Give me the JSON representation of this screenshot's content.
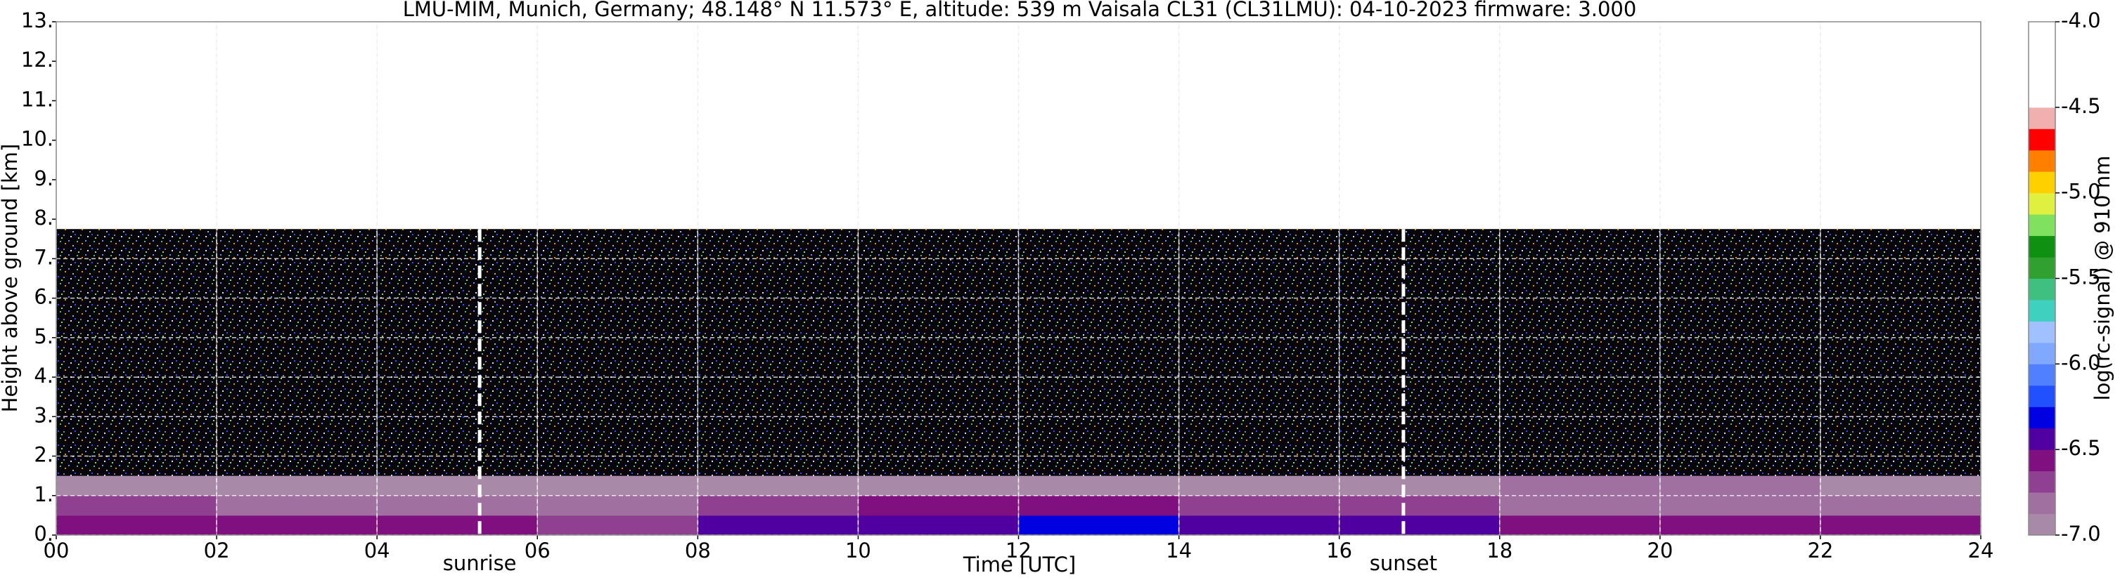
{
  "chart_data": {
    "type": "heatmap",
    "title": "LMU-MIM, Munich, Germany; 48.148° N 11.573° E, altitude: 539 m    Vaisala CL31 (CL31LMU): 04-10-2023    firmware: 3.000",
    "x_label": "Time [UTC]",
    "y_label": "Height above ground [km]",
    "colorbar_label": "log(rc-signal) @ 910 nm",
    "xlim": [
      0,
      24
    ],
    "ylim": [
      0,
      13
    ],
    "xticks": [
      {
        "value": 0,
        "label": "00"
      },
      {
        "value": 2,
        "label": "02"
      },
      {
        "value": 4,
        "label": "04"
      },
      {
        "value": 6,
        "label": "06"
      },
      {
        "value": 8,
        "label": "08"
      },
      {
        "value": 10,
        "label": "10"
      },
      {
        "value": 12,
        "label": "12"
      },
      {
        "value": 14,
        "label": "14"
      },
      {
        "value": 16,
        "label": "16"
      },
      {
        "value": 18,
        "label": "18"
      },
      {
        "value": 20,
        "label": "20"
      },
      {
        "value": 22,
        "label": "22"
      },
      {
        "value": 24,
        "label": "24"
      }
    ],
    "yticks": [
      {
        "value": 0,
        "label": "0."
      },
      {
        "value": 1,
        "label": "1."
      },
      {
        "value": 2,
        "label": "2."
      },
      {
        "value": 3,
        "label": "3."
      },
      {
        "value": 4,
        "label": "4."
      },
      {
        "value": 5,
        "label": "5."
      },
      {
        "value": 6,
        "label": "6."
      },
      {
        "value": 7,
        "label": "7."
      },
      {
        "value": 8,
        "label": "8."
      },
      {
        "value": 9,
        "label": "9."
      },
      {
        "value": 10,
        "label": "10."
      },
      {
        "value": 11,
        "label": "11."
      },
      {
        "value": 12,
        "label": "12."
      },
      {
        "value": 13,
        "label": "13."
      }
    ],
    "x_edges": [
      0,
      2,
      4,
      6,
      8,
      10,
      12,
      14,
      16,
      18,
      20,
      22,
      24
    ],
    "y_edges": [
      0,
      0.5,
      1,
      1.5
    ],
    "z": [
      [
        -6.55,
        -6.6,
        -6.6,
        -6.65,
        -6.45,
        -6.4,
        -6.35,
        -6.4,
        -6.5,
        -6.55,
        -6.55,
        -6.6
      ],
      [
        -6.75,
        -6.8,
        -6.85,
        -6.85,
        -6.7,
        -6.6,
        -6.6,
        -6.65,
        -6.75,
        -6.8,
        -6.8,
        -6.85
      ],
      [
        -6.9,
        -6.95,
        -6.95,
        -6.95,
        -6.95,
        -6.95,
        -6.95,
        -6.95,
        -6.9,
        -6.85,
        -6.85,
        -6.9
      ]
    ],
    "clim": [
      -7,
      -4
    ],
    "cticks": [
      {
        "value": -7,
        "label": "-7.0"
      },
      {
        "value": -6.5,
        "label": "-6.5"
      },
      {
        "value": -6,
        "label": "-6.0"
      },
      {
        "value": -5.5,
        "label": "-5.5"
      },
      {
        "value": -5,
        "label": "-5.0"
      },
      {
        "value": -4.5,
        "label": "-4.5"
      },
      {
        "value": -4,
        "label": "-4.0"
      }
    ],
    "colormap": [
      "#a88aa8",
      "#a070a0",
      "#904090",
      "#801080",
      "#5000a0",
      "#0000e0",
      "#2050ff",
      "#5080ff",
      "#80a8ff",
      "#a0c0ff",
      "#40d0c0",
      "#40c080",
      "#30a030",
      "#109010",
      "#80e060",
      "#e0f040",
      "#ffd000",
      "#ff8000",
      "#ff0000",
      "#f0b0b0",
      "#ffffff",
      "#ffffff",
      "#ffffff",
      "#ffffff"
    ],
    "annotations": [
      {
        "text": "sunrise",
        "x": 5.28
      },
      {
        "text": "sunset",
        "x": 16.8
      }
    ],
    "grid": true
  }
}
